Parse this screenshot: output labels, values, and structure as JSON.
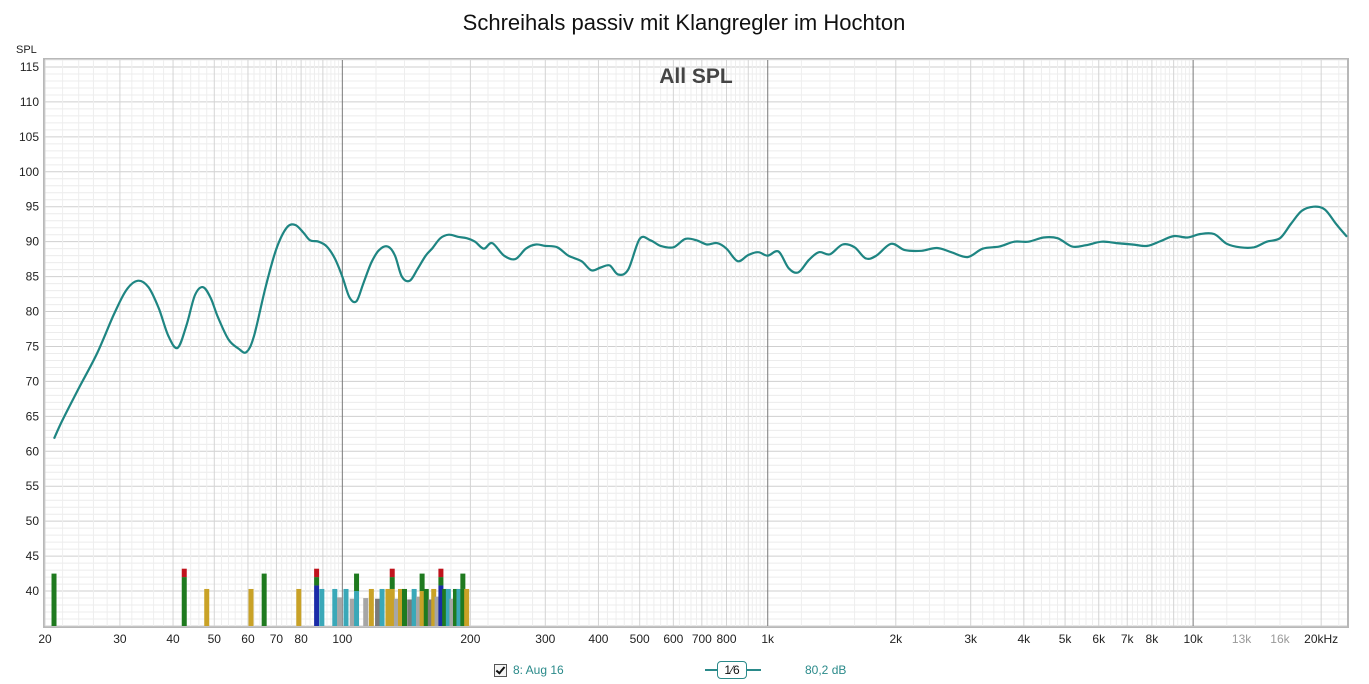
{
  "chart_data": {
    "type": "line",
    "title": "Schreihals passiv mit Klangregler im Hochton",
    "inner_title": "All SPL",
    "ylabel": "SPL",
    "xunit": "kHz",
    "xscale": "log",
    "xlim": [
      20,
      23000
    ],
    "ylim": [
      35,
      116
    ],
    "yticks": [
      40,
      45,
      50,
      55,
      60,
      65,
      70,
      75,
      80,
      85,
      90,
      95,
      100,
      105,
      110,
      115
    ],
    "xticks_major": [
      {
        "v": 20,
        "label": "20"
      },
      {
        "v": 30,
        "label": "30"
      },
      {
        "v": 40,
        "label": "40"
      },
      {
        "v": 50,
        "label": "50"
      },
      {
        "v": 60,
        "label": "60"
      },
      {
        "v": 70,
        "label": "70"
      },
      {
        "v": 80,
        "label": "80"
      },
      {
        "v": 100,
        "label": "100"
      },
      {
        "v": 200,
        "label": "200"
      },
      {
        "v": 300,
        "label": "300"
      },
      {
        "v": 400,
        "label": "400"
      },
      {
        "v": 500,
        "label": "500"
      },
      {
        "v": 600,
        "label": "600"
      },
      {
        "v": 700,
        "label": "700"
      },
      {
        "v": 800,
        "label": "800"
      },
      {
        "v": 1000,
        "label": "1k"
      },
      {
        "v": 2000,
        "label": "2k"
      },
      {
        "v": 3000,
        "label": "3k"
      },
      {
        "v": 4000,
        "label": "4k"
      },
      {
        "v": 5000,
        "label": "5k"
      },
      {
        "v": 6000,
        "label": "6k"
      },
      {
        "v": 7000,
        "label": "7k"
      },
      {
        "v": 8000,
        "label": "8k"
      },
      {
        "v": 10000,
        "label": "10k"
      },
      {
        "v": 20000,
        "label": "20kHz"
      }
    ],
    "xticks_minor": [
      {
        "v": 13000,
        "label": "13k"
      },
      {
        "v": 16000,
        "label": "16k"
      }
    ],
    "grid": true,
    "series": [
      {
        "name": "8: Aug 16",
        "color": "#1e8582",
        "x": [
          21,
          22,
          24,
          26.5,
          29,
          31,
          33,
          35,
          37,
          39,
          41,
          43,
          45,
          47,
          49,
          51,
          54,
          57,
          59.5,
          62,
          66,
          70,
          74,
          77.5,
          81,
          84,
          88,
          92,
          96,
          100,
          104,
          108,
          112,
          117,
          122,
          128,
          133,
          138,
          144,
          150,
          157,
          163,
          170,
          178,
          187,
          196,
          205,
          215,
          225,
          240,
          255,
          270,
          285,
          300,
          320,
          340,
          365,
          385,
          405,
          425,
          445,
          470,
          500,
          530,
          560,
          600,
          640,
          680,
          720,
          760,
          800,
          850,
          900,
          950,
          1000,
          1060,
          1120,
          1180,
          1250,
          1320,
          1400,
          1500,
          1600,
          1700,
          1800,
          1950,
          2100,
          2300,
          2500,
          2700,
          2950,
          3200,
          3500,
          3800,
          4100,
          4450,
          4800,
          5200,
          5600,
          6100,
          6600,
          7200,
          7800,
          8400,
          9000,
          9700,
          10400,
          11200,
          12000,
          12900,
          13900,
          14900,
          16000,
          17000,
          18000,
          19200,
          20400,
          21700,
          23000
        ],
        "y": [
          61.8,
          64.5,
          69,
          74,
          79.5,
          83,
          84.4,
          83.5,
          80.5,
          76.5,
          74.8,
          78,
          82.3,
          83.5,
          82,
          79.2,
          76,
          74.7,
          74.2,
          76.5,
          83.5,
          89,
          92,
          92.4,
          91.3,
          90.2,
          90,
          89.3,
          87.6,
          85,
          82,
          81.5,
          84,
          87,
          88.8,
          89.3,
          88,
          85,
          84.4,
          86,
          88,
          89.1,
          90.5,
          91,
          90.7,
          90.5,
          90,
          89,
          89.8,
          88,
          87.5,
          89,
          89.6,
          89.4,
          89.2,
          88,
          87.2,
          85.9,
          86.3,
          86.6,
          85.3,
          86,
          90.4,
          90.2,
          89.4,
          89.2,
          90.4,
          90.2,
          89.6,
          89.8,
          89,
          87.2,
          88.1,
          88.5,
          88,
          88.6,
          86.2,
          85.6,
          87.4,
          88.5,
          88.2,
          89.6,
          89.2,
          87.6,
          88,
          89.7,
          88.8,
          88.7,
          89.1,
          88.5,
          87.8,
          89,
          89.3,
          90,
          90,
          90.6,
          90.5,
          89.3,
          89.5,
          90,
          89.8,
          89.6,
          89.4,
          90.1,
          90.8,
          90.6,
          91.1,
          91.1,
          89.7,
          89.2,
          89.2,
          90,
          90.5,
          92.6,
          94.4,
          95,
          94.6,
          92.5,
          90.7
        ]
      }
    ],
    "distortion_bars": [
      {
        "f": 21,
        "segments": [
          {
            "v": 42.5,
            "color": "#1f7a1f"
          }
        ]
      },
      {
        "f": 42.5,
        "segments": [
          {
            "v": 42,
            "color": "#1f7a1f"
          },
          {
            "v": 43.2,
            "color": "#c0141d"
          }
        ]
      },
      {
        "f": 48,
        "segments": [
          {
            "v": 40.3,
            "color": "#c9a227"
          }
        ]
      },
      {
        "f": 61,
        "segments": [
          {
            "v": 40.3,
            "color": "#c9a227"
          }
        ]
      },
      {
        "f": 65.5,
        "segments": [
          {
            "v": 42.5,
            "color": "#1f7a1f"
          }
        ]
      },
      {
        "f": 79,
        "segments": [
          {
            "v": 40.3,
            "color": "#c9a227"
          }
        ]
      },
      {
        "f": 87,
        "segments": [
          {
            "v": 40.8,
            "color": "#1a2ba8"
          },
          {
            "v": 42,
            "color": "#1f7a1f"
          },
          {
            "v": 43.2,
            "color": "#c0141d"
          }
        ]
      },
      {
        "f": 89.5,
        "segments": [
          {
            "v": 40.3,
            "color": "#3aa8b8"
          }
        ]
      },
      {
        "f": 96,
        "segments": [
          {
            "v": 40.3,
            "color": "#3aa8b8"
          }
        ]
      },
      {
        "f": 98.5,
        "segments": [
          {
            "v": 39.1,
            "color": "#a6a6a6"
          }
        ]
      },
      {
        "f": 102,
        "segments": [
          {
            "v": 40.3,
            "color": "#3aa8b8"
          }
        ]
      },
      {
        "f": 105.5,
        "segments": [
          {
            "v": 38.9,
            "color": "#a6a6a6"
          }
        ]
      },
      {
        "f": 108,
        "segments": [
          {
            "v": 40,
            "color": "#3aa8b8"
          },
          {
            "v": 42.5,
            "color": "#1f7a1f"
          }
        ]
      },
      {
        "f": 113.5,
        "segments": [
          {
            "v": 39,
            "color": "#a6a6a6"
          }
        ]
      },
      {
        "f": 117,
        "segments": [
          {
            "v": 40.3,
            "color": "#c9a227"
          }
        ]
      },
      {
        "f": 121,
        "segments": [
          {
            "v": 38.9,
            "color": "#7a7a7a"
          }
        ]
      },
      {
        "f": 124,
        "segments": [
          {
            "v": 40.3,
            "color": "#3aa8b8"
          }
        ]
      },
      {
        "f": 128,
        "segments": [
          {
            "v": 40.3,
            "color": "#c9a227"
          }
        ]
      },
      {
        "f": 131,
        "segments": [
          {
            "v": 40.3,
            "color": "#c9a227"
          },
          {
            "v": 42,
            "color": "#1f7a1f"
          },
          {
            "v": 43.2,
            "color": "#c0141d"
          }
        ]
      },
      {
        "f": 134,
        "segments": [
          {
            "v": 38.9,
            "color": "#a6a6a6"
          }
        ]
      },
      {
        "f": 137,
        "segments": [
          {
            "v": 40.3,
            "color": "#c9a227"
          }
        ]
      },
      {
        "f": 140,
        "segments": [
          {
            "v": 40.3,
            "color": "#1f7a1f"
          }
        ]
      },
      {
        "f": 144,
        "segments": [
          {
            "v": 38.8,
            "color": "#7a7a7a"
          }
        ]
      },
      {
        "f": 147.5,
        "segments": [
          {
            "v": 40.3,
            "color": "#3aa8b8"
          }
        ]
      },
      {
        "f": 151,
        "segments": [
          {
            "v": 39.2,
            "color": "#a6a6a6"
          }
        ]
      },
      {
        "f": 154,
        "segments": [
          {
            "v": 40,
            "color": "#c9a227"
          },
          {
            "v": 42.5,
            "color": "#1f7a1f"
          }
        ]
      },
      {
        "f": 157.5,
        "segments": [
          {
            "v": 40.3,
            "color": "#1f7a1f"
          }
        ]
      },
      {
        "f": 161,
        "segments": [
          {
            "v": 38.8,
            "color": "#7a7a7a"
          }
        ]
      },
      {
        "f": 164,
        "segments": [
          {
            "v": 40.3,
            "color": "#c9a227"
          }
        ]
      },
      {
        "f": 167,
        "segments": [
          {
            "v": 39.2,
            "color": "#a6a6a6"
          }
        ]
      },
      {
        "f": 170.5,
        "segments": [
          {
            "v": 40.8,
            "color": "#1a2ba8"
          },
          {
            "v": 42,
            "color": "#1f7a1f"
          },
          {
            "v": 43.2,
            "color": "#c0141d"
          }
        ]
      },
      {
        "f": 174,
        "segments": [
          {
            "v": 40.3,
            "color": "#1f7a1f"
          }
        ]
      },
      {
        "f": 177.5,
        "segments": [
          {
            "v": 40.3,
            "color": "#3aa8b8"
          }
        ]
      },
      {
        "f": 181,
        "segments": [
          {
            "v": 38.9,
            "color": "#a6a6a6"
          }
        ]
      },
      {
        "f": 184.5,
        "segments": [
          {
            "v": 40.3,
            "color": "#1f7a1f"
          }
        ]
      },
      {
        "f": 188,
        "segments": [
          {
            "v": 40.3,
            "color": "#3aa8b8"
          }
        ]
      },
      {
        "f": 192,
        "segments": [
          {
            "v": 40.3,
            "color": "#1f7a1f"
          },
          {
            "v": 42.5,
            "color": "#1f7a1f"
          }
        ]
      },
      {
        "f": 196,
        "segments": [
          {
            "v": 40.3,
            "color": "#c9a227"
          }
        ]
      }
    ]
  },
  "legend": {
    "series_label": "8: Aug 16",
    "smoothing_label": "1⁄6",
    "level_label": "80,2 dB"
  }
}
